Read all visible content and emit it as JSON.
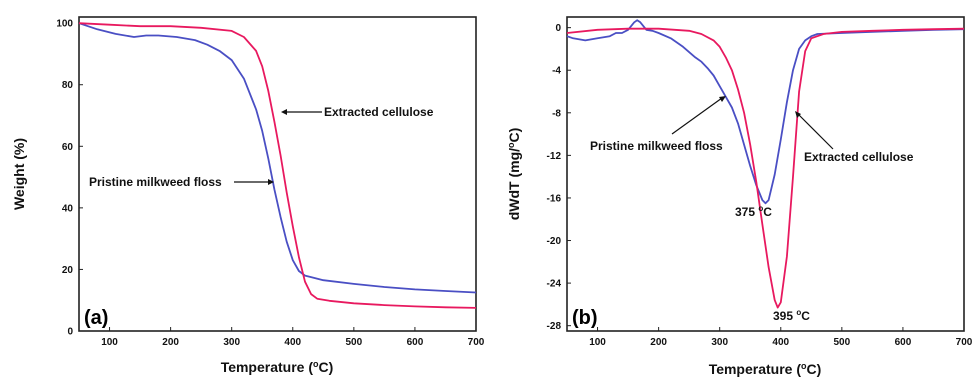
{
  "colors": {
    "pristine": "#4a4fc4",
    "cellulose": "#e8195f",
    "axis": "#222222"
  },
  "chart_data": [
    {
      "panel": "(a)",
      "type": "line",
      "xlabel_pre": "Temperature (",
      "xlabel_unit": "C",
      "xlabel_post": ")",
      "ylabel": "Weight (%)",
      "xlim": [
        50,
        700
      ],
      "ylim": [
        0,
        102
      ],
      "xticks": [
        100,
        200,
        300,
        400,
        500,
        600,
        700
      ],
      "yticks": [
        0,
        20,
        40,
        60,
        80,
        100
      ],
      "grid": false,
      "series": [
        {
          "name": "Pristine milkweed floss",
          "color": "#4a4fc4",
          "x": [
            50,
            80,
            110,
            140,
            160,
            180,
            210,
            240,
            260,
            280,
            300,
            320,
            340,
            350,
            360,
            370,
            380,
            390,
            400,
            410,
            420,
            430,
            450,
            500,
            550,
            600,
            650,
            700
          ],
          "y": [
            100,
            98,
            96.5,
            95.5,
            96,
            96,
            95.5,
            94.5,
            93,
            91,
            88,
            82,
            72,
            65,
            56,
            46,
            37,
            29,
            23,
            19.5,
            18,
            17.5,
            16.5,
            15.3,
            14.3,
            13.5,
            13,
            12.5
          ]
        },
        {
          "name": "Extracted cellulose",
          "color": "#e8195f",
          "x": [
            50,
            100,
            150,
            200,
            250,
            300,
            320,
            340,
            350,
            360,
            370,
            380,
            390,
            400,
            410,
            420,
            430,
            440,
            460,
            500,
            550,
            600,
            650,
            700
          ],
          "y": [
            100,
            99.5,
            99,
            99,
            98.5,
            97.5,
            95.5,
            91,
            86,
            78,
            68,
            57,
            45,
            34,
            24,
            16,
            12,
            10.5,
            9.8,
            9,
            8.4,
            8,
            7.7,
            7.5
          ]
        }
      ],
      "annotations": [
        {
          "text": "Extracted cellulose",
          "point": [
            380,
            71
          ]
        },
        {
          "text": "Pristine milkweed floss",
          "point": [
            370,
            48
          ]
        }
      ]
    },
    {
      "panel": "(b)",
      "type": "line",
      "xlabel_pre": "Temperature (",
      "xlabel_unit": "C",
      "xlabel_post": ")",
      "ylabel_pre": "dWdT (mg/",
      "ylabel_unit": "C",
      "ylabel_post": ")",
      "xlim": [
        50,
        700
      ],
      "ylim": [
        -28.5,
        1
      ],
      "xticks": [
        100,
        200,
        300,
        400,
        500,
        600,
        700
      ],
      "yticks": [
        0,
        -4,
        -8,
        -12,
        -16,
        -20,
        -24,
        -28
      ],
      "grid": false,
      "series": [
        {
          "name": "Pristine milkweed floss",
          "color": "#4a4fc4",
          "x": [
            50,
            60,
            80,
            100,
            120,
            130,
            140,
            150,
            160,
            165,
            170,
            180,
            190,
            200,
            220,
            240,
            260,
            270,
            280,
            290,
            300,
            310,
            320,
            330,
            340,
            350,
            360,
            370,
            375,
            380,
            390,
            400,
            410,
            420,
            430,
            440,
            450,
            460,
            500,
            550,
            600,
            650,
            700
          ],
          "y": [
            -0.8,
            -1,
            -1.2,
            -1,
            -0.8,
            -0.5,
            -0.5,
            -0.2,
            0.5,
            0.7,
            0.5,
            -0.2,
            -0.3,
            -0.5,
            -1,
            -1.8,
            -2.8,
            -3.2,
            -3.8,
            -4.5,
            -5.5,
            -6.5,
            -7.5,
            -9,
            -11,
            -13,
            -14.8,
            -16.2,
            -16.5,
            -16.2,
            -13.8,
            -10.5,
            -7,
            -4,
            -2,
            -1.2,
            -0.8,
            -0.6,
            -0.5,
            -0.4,
            -0.3,
            -0.2,
            -0.15
          ]
        },
        {
          "name": "Extracted cellulose",
          "color": "#e8195f",
          "x": [
            50,
            100,
            150,
            200,
            250,
            270,
            290,
            300,
            310,
            320,
            330,
            340,
            350,
            360,
            370,
            380,
            390,
            395,
            400,
            410,
            420,
            430,
            440,
            450,
            470,
            500,
            550,
            600,
            650,
            700
          ],
          "y": [
            -0.5,
            -0.2,
            -0.1,
            -0.1,
            -0.3,
            -0.6,
            -1.2,
            -1.8,
            -2.8,
            -4,
            -5.8,
            -8,
            -11,
            -14.5,
            -18.5,
            -22.5,
            -25.6,
            -26.3,
            -25.8,
            -21.5,
            -14,
            -6,
            -2.2,
            -1,
            -0.6,
            -0.4,
            -0.3,
            -0.2,
            -0.15,
            -0.1
          ]
        }
      ],
      "annotations": [
        {
          "text": "Pristine milkweed floss",
          "point": [
            310,
            -6.5
          ]
        },
        {
          "text": "Extracted cellulose",
          "point": [
            380,
            -10
          ]
        },
        {
          "text_pre": "375 ",
          "text_unit": "C",
          "value": 375
        },
        {
          "text_pre": "395 ",
          "text_unit": "C",
          "value": 395
        }
      ]
    }
  ]
}
